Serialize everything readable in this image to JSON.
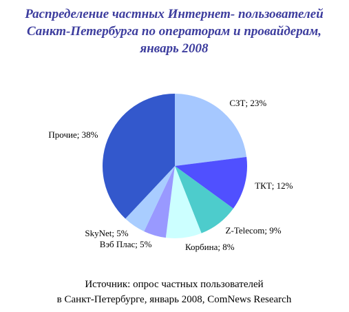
{
  "chart_data": {
    "type": "pie",
    "title": [
      "Распределение частных Интернет- пользователей",
      "Санкт-Петербурга по операторам и провайдерам,",
      "январь 2008"
    ],
    "values": [
      23,
      12,
      9,
      8,
      5,
      5,
      38
    ],
    "value_labels": [
      "СЗТ; 23%",
      "ТКТ; 12%",
      "Z-Telecom; 9%",
      "Корбина; 8%",
      "Вэб Плас; 5%",
      "SkyNet; 5%",
      "Прочие; 38%"
    ],
    "colors": [
      "#a6c8ff",
      "#5050ff",
      "#4dcccc",
      "#ccffff",
      "#9999ff",
      "#a9cdff",
      "#3358cc"
    ],
    "source": [
      "Источник: опрос частных пользователей",
      "в Санкт-Петербурге, январь 2008, ComNews Research"
    ]
  }
}
